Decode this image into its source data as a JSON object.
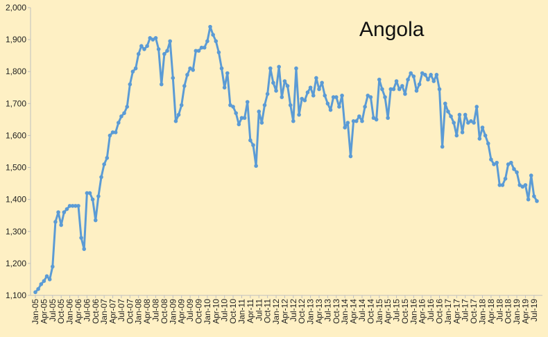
{
  "colors": {
    "background": "#FEF0C4",
    "line": "#5B9BD5",
    "axis": "#BFBFBF"
  },
  "chart_data": {
    "type": "line",
    "title": "Angola",
    "xlabel": "",
    "ylabel": "",
    "ylim": [
      1100,
      2000
    ],
    "yticks": [
      "1,100",
      "1,200",
      "1,300",
      "1,400",
      "1,500",
      "1,600",
      "1,700",
      "1,800",
      "1,900",
      "2,000"
    ],
    "ytick_values": [
      1100,
      1200,
      1300,
      1400,
      1500,
      1600,
      1700,
      1800,
      1900,
      2000
    ],
    "x_start": "Jan-05",
    "x_end": "Sep-19",
    "xtick_step_months": 3,
    "xticks": [
      "Jan-05",
      "Apr-05",
      "Jul-05",
      "Oct-05",
      "Jan-06",
      "Apr-06",
      "Jul-06",
      "Oct-06",
      "Jan-07",
      "Apr-07",
      "Jul-07",
      "Oct-07",
      "Jan-08",
      "Apr-08",
      "Jul-08",
      "Oct-08",
      "Jan-09",
      "Apr-09",
      "Jul-09",
      "Oct-09",
      "Jan-10",
      "Apr-10",
      "Jul-10",
      "Oct-10",
      "Jan-11",
      "Apr-11",
      "Jul-11",
      "Oct-11",
      "Jan-12",
      "Apr-12",
      "Jul-12",
      "Oct-12",
      "Jan-13",
      "Apr-13",
      "Jul-13",
      "Oct-13",
      "Jan-14",
      "Apr-14",
      "Jul-14",
      "Oct-14",
      "Jan-15",
      "Apr-15",
      "Jul-15",
      "Oct-15",
      "Jan-16",
      "Apr-16",
      "Jul-16",
      "Oct-16",
      "Jan-17",
      "Apr-17",
      "Jul-17",
      "Oct-17",
      "Jan-18",
      "Apr-18",
      "Jul-18",
      "Oct-18",
      "Jan-19",
      "Apr-19",
      "Jul-19"
    ],
    "grid": false,
    "legend": "none",
    "series": [
      {
        "values": [
          1110,
          1120,
          1135,
          1145,
          1160,
          1150,
          1190,
          1330,
          1360,
          1320,
          1360,
          1370,
          1380,
          1380,
          1380,
          1380,
          1280,
          1245,
          1420,
          1420,
          1400,
          1335,
          1410,
          1470,
          1510,
          1530,
          1600,
          1610,
          1610,
          1640,
          1660,
          1670,
          1690,
          1760,
          1800,
          1810,
          1855,
          1880,
          1870,
          1880,
          1905,
          1900,
          1905,
          1870,
          1760,
          1855,
          1865,
          1895,
          1780,
          1645,
          1665,
          1695,
          1755,
          1790,
          1810,
          1805,
          1865,
          1865,
          1875,
          1875,
          1895,
          1940,
          1915,
          1895,
          1860,
          1810,
          1750,
          1795,
          1695,
          1690,
          1670,
          1635,
          1655,
          1655,
          1705,
          1585,
          1570,
          1505,
          1675,
          1640,
          1695,
          1730,
          1810,
          1765,
          1740,
          1815,
          1720,
          1770,
          1755,
          1695,
          1645,
          1810,
          1665,
          1715,
          1710,
          1735,
          1750,
          1725,
          1780,
          1745,
          1765,
          1725,
          1700,
          1680,
          1720,
          1720,
          1690,
          1725,
          1625,
          1640,
          1535,
          1645,
          1645,
          1660,
          1645,
          1690,
          1725,
          1720,
          1655,
          1650,
          1775,
          1745,
          1720,
          1655,
          1745,
          1745,
          1770,
          1745,
          1755,
          1730,
          1775,
          1795,
          1785,
          1740,
          1760,
          1795,
          1790,
          1775,
          1790,
          1770,
          1790,
          1745,
          1565,
          1700,
          1675,
          1660,
          1640,
          1600,
          1665,
          1610,
          1665,
          1640,
          1645,
          1640,
          1690,
          1590,
          1625,
          1600,
          1575,
          1525,
          1510,
          1515,
          1445,
          1445,
          1465,
          1510,
          1515,
          1495,
          1485,
          1445,
          1440,
          1445,
          1400,
          1475,
          1410,
          1395
        ]
      }
    ]
  }
}
